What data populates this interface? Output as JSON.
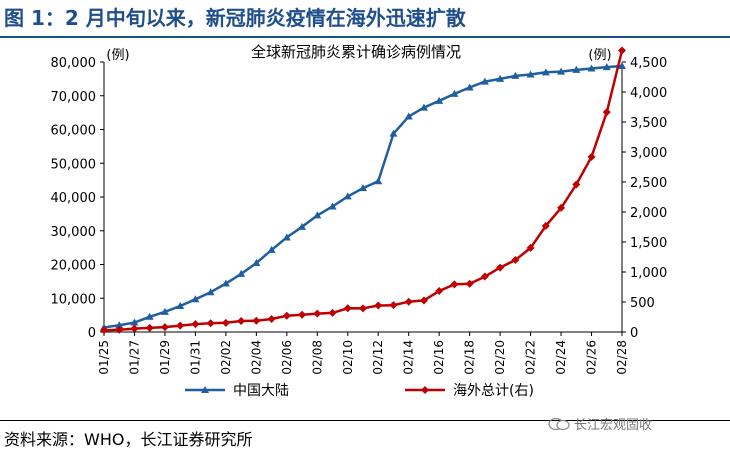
{
  "figure": {
    "title": "图 1：2 月中旬以来，新冠肺炎疫情在海外迅速扩散",
    "source": "资料来源：WHO，长江证券研究所",
    "watermark": "长江宏观固收"
  },
  "chart_data": {
    "type": "line",
    "title": "全球新冠肺炎累计确诊病例情况",
    "y_left_unit": "(例)",
    "y_right_unit": "(例)",
    "ylim_left": [
      0,
      80000
    ],
    "ylim_right": [
      0,
      4500
    ],
    "yticks_left": [
      "0",
      "10,000",
      "20,000",
      "30,000",
      "40,000",
      "50,000",
      "60,000",
      "70,000",
      "80,000"
    ],
    "yticks_right": [
      "0",
      "500",
      "1,000",
      "1,500",
      "2,000",
      "2,500",
      "3,000",
      "3,500",
      "4,000",
      "4,500"
    ],
    "x": [
      "01/25",
      "01/26",
      "01/27",
      "01/28",
      "01/29",
      "01/30",
      "01/31",
      "02/01",
      "02/02",
      "02/03",
      "02/04",
      "02/05",
      "02/06",
      "02/07",
      "02/08",
      "02/09",
      "02/10",
      "02/11",
      "02/12",
      "02/13",
      "02/14",
      "02/15",
      "02/16",
      "02/17",
      "02/18",
      "02/19",
      "02/20",
      "02/21",
      "02/22",
      "02/23",
      "02/24",
      "02/25",
      "02/26",
      "02/27",
      "02/28"
    ],
    "x_tick_labels": [
      "01/25",
      "01/27",
      "01/29",
      "01/31",
      "02/02",
      "02/04",
      "02/06",
      "02/08",
      "02/10",
      "02/12",
      "02/14",
      "02/16",
      "02/18",
      "02/20",
      "02/22",
      "02/24",
      "02/26",
      "02/28"
    ],
    "grid": false,
    "legend_position": "bottom",
    "series": [
      {
        "name": "中国大陆",
        "axis": "left",
        "color": "#1f5f9f",
        "marker": "triangle",
        "values": [
          1320,
          2014,
          2798,
          4515,
          5974,
          7711,
          9692,
          11791,
          14380,
          17205,
          20438,
          24324,
          28018,
          31161,
          34546,
          37198,
          40171,
          42638,
          44653,
          58761,
          63851,
          66492,
          68500,
          70548,
          72436,
          74185,
          75002,
          75891,
          76288,
          76936,
          77150,
          77658,
          78064,
          78497,
          78824
        ]
      },
      {
        "name": "海外总计(右)",
        "axis": "right",
        "color": "#c00000",
        "marker": "diamond",
        "values": [
          29,
          37,
          56,
          68,
          82,
          106,
          132,
          146,
          153,
          183,
          188,
          216,
          270,
          288,
          307,
          319,
          395,
          393,
          441,
          447,
          505,
          526,
          683,
          794,
          804,
          924,
          1073,
          1200,
          1402,
          1769,
          2069,
          2459,
          2918,
          3664,
          4691
        ]
      }
    ]
  }
}
